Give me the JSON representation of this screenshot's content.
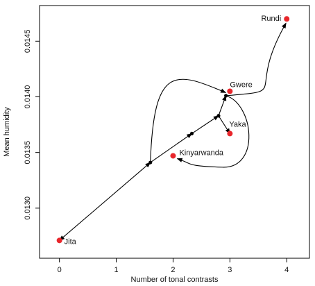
{
  "chart_data": {
    "type": "scatter",
    "xlabel": "Number of tonal contrasts",
    "ylabel": "Mean humidity",
    "xlim": [
      -0.35,
      4.4
    ],
    "ylim": [
      0.01255,
      0.01482
    ],
    "x_ticks": [
      0,
      1,
      2,
      3,
      4
    ],
    "x_tick_labels": [
      "0",
      "1",
      "2",
      "3",
      "4"
    ],
    "y_ticks": [
      0.013,
      0.0135,
      0.014,
      0.0145
    ],
    "y_tick_labels": [
      "0.0130",
      "0.0135",
      "0.0140",
      "0.0145"
    ],
    "grid": false,
    "legend": "none",
    "point_color": "#e8262b",
    "node_color": "#000000",
    "points": [
      {
        "name": "Jita",
        "x": 0,
        "y": 0.01271
      },
      {
        "name": "Kinyarwanda",
        "x": 2,
        "y": 0.01347
      },
      {
        "name": "Yaka",
        "x": 3,
        "y": 0.01367
      },
      {
        "name": "Gwere",
        "x": 3,
        "y": 0.01405
      },
      {
        "name": "Rundi",
        "x": 4,
        "y": 0.0147
      }
    ],
    "internal_nodes": [
      {
        "x": 1.6,
        "y": 0.01341
      },
      {
        "x": 2.33,
        "y": 0.01367
      },
      {
        "x": 2.8,
        "y": 0.01383
      },
      {
        "x": 2.93,
        "y": 0.01401
      }
    ]
  }
}
